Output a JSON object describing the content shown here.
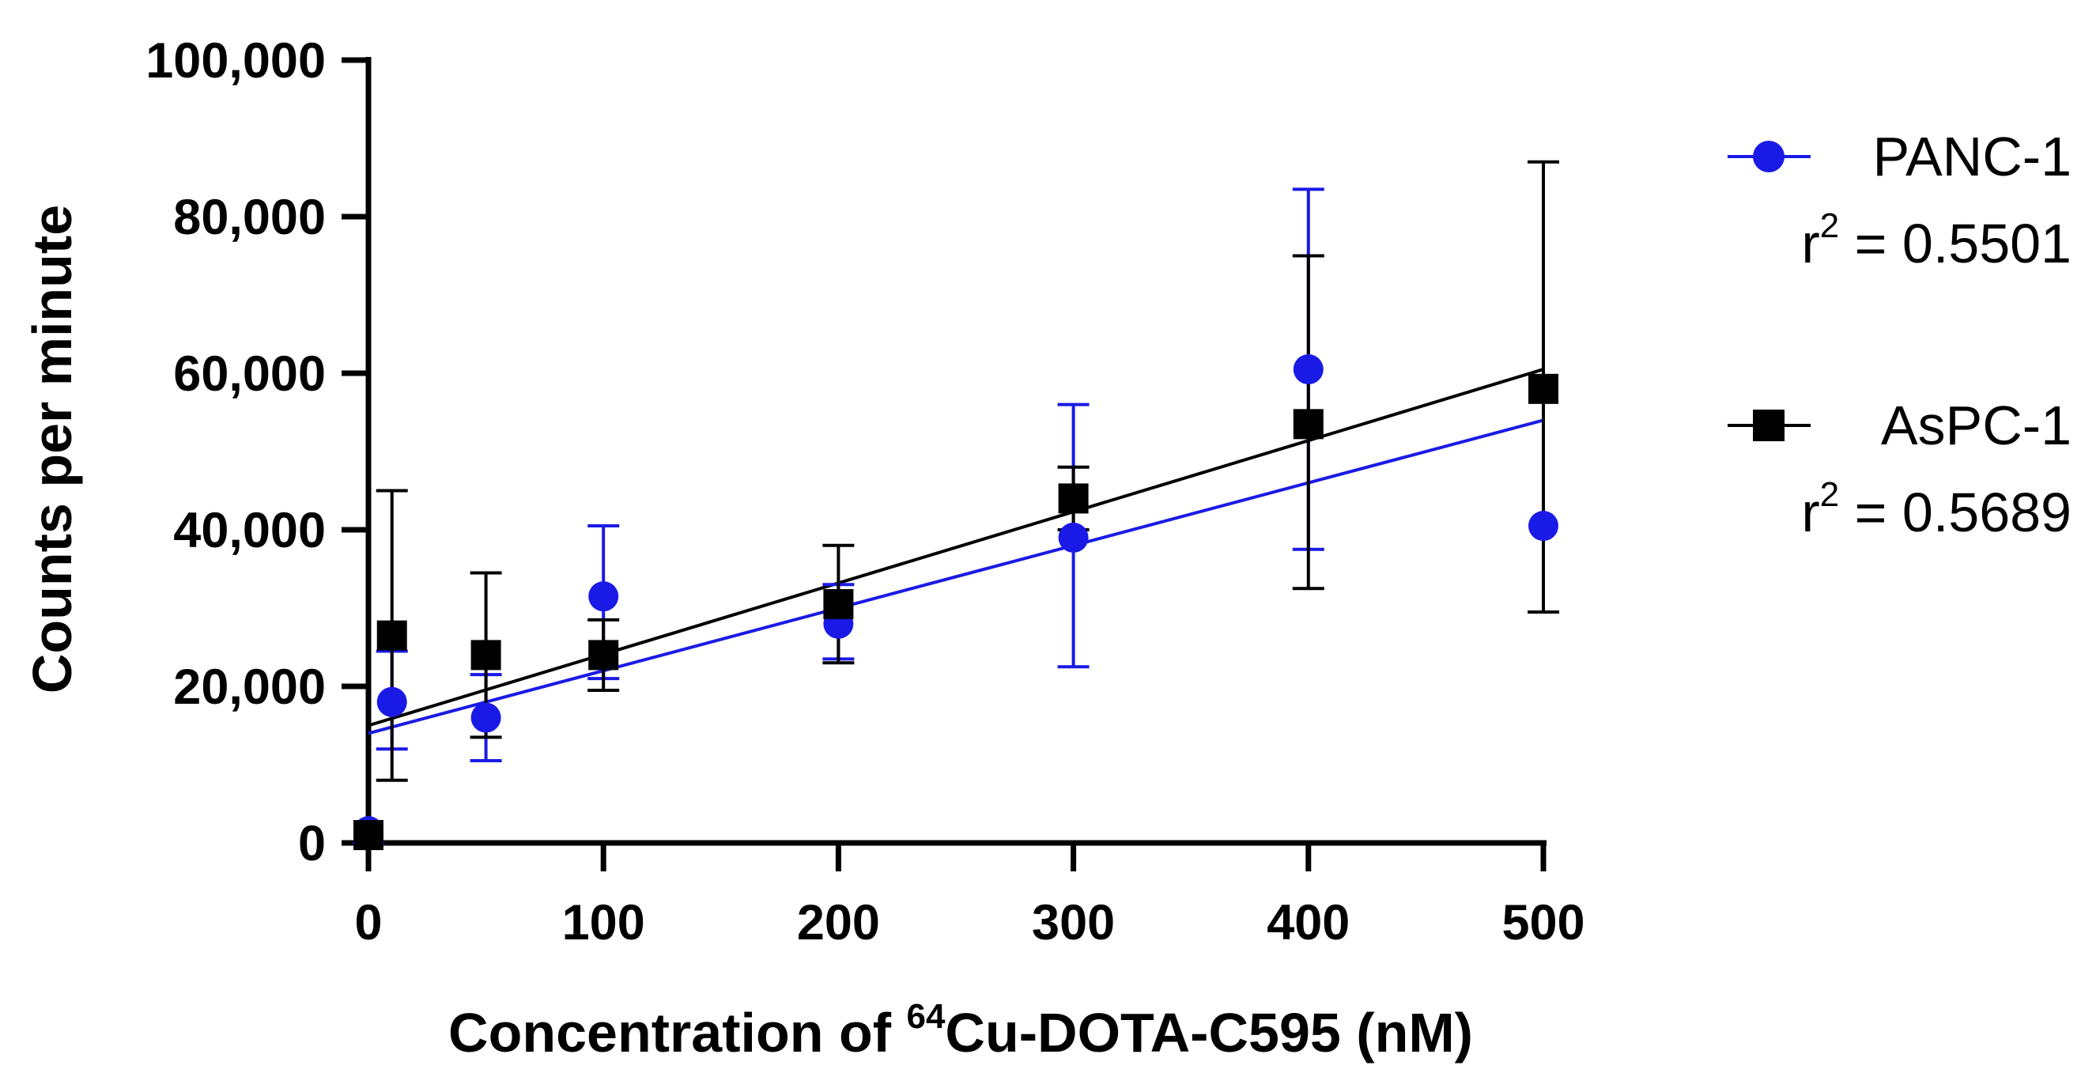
{
  "chart_data": {
    "type": "scatter",
    "xlabel_prefix": "Concentration of ",
    "xlabel_sup": "64",
    "xlabel_suffix": "Cu-DOTA-C595 (nM)",
    "ylabel": "Counts per minute",
    "xlim": [
      0,
      500
    ],
    "ylim": [
      0,
      100000
    ],
    "x_ticks": [
      0,
      100,
      200,
      300,
      400,
      500
    ],
    "x_tick_labels": [
      "0",
      "100",
      "200",
      "300",
      "400",
      "500"
    ],
    "y_ticks": [
      0,
      20000,
      40000,
      60000,
      80000,
      100000
    ],
    "y_tick_labels": [
      "0",
      "20,000",
      "40,000",
      "60,000",
      "80,000",
      "100,000"
    ],
    "grid": false,
    "legend_position": "right",
    "series": [
      {
        "name": "PANC-1",
        "r2_prefix": "r",
        "r2_sup": "2",
        "r2_value": " = 0.5501",
        "color": "#1a1ae6",
        "marker": "circle",
        "x": [
          0,
          10,
          50,
          100,
          200,
          300,
          400,
          500
        ],
        "y": [
          1500,
          18000,
          16000,
          31500,
          28000,
          39000,
          60500,
          40500
        ],
        "err_upper": [
          0,
          24500,
          21500,
          40500,
          33000,
          56000,
          83500,
          40500
        ],
        "err_lower": [
          0,
          12000,
          10500,
          21000,
          23500,
          22500,
          37500,
          40500
        ],
        "fit": {
          "intercept": 14000,
          "slope": 80
        }
      },
      {
        "name": "AsPC-1",
        "r2_prefix": "r",
        "r2_sup": "2",
        "r2_value": " = 0.5689",
        "color": "#000000",
        "marker": "square",
        "x": [
          0,
          10,
          50,
          100,
          200,
          300,
          400,
          500
        ],
        "y": [
          1000,
          26500,
          24000,
          24000,
          30500,
          44000,
          53500,
          58000
        ],
        "err_upper": [
          1000,
          45000,
          34500,
          28500,
          38000,
          48000,
          75000,
          87000
        ],
        "err_lower": [
          1000,
          8000,
          13500,
          19500,
          23000,
          40000,
          32500,
          29500
        ],
        "fit": {
          "intercept": 15000,
          "slope": 91
        }
      }
    ]
  }
}
